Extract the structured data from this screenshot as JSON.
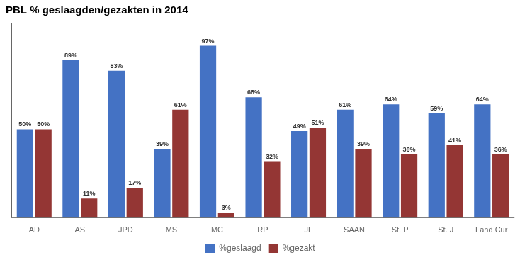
{
  "chart_data": {
    "type": "bar",
    "title": "PBL % geslaagden/gezakten in 2014",
    "categories": [
      "AD",
      "AS",
      "JPD",
      "MS",
      "MC",
      "RP",
      "JF",
      "SAAN",
      "St. P",
      "St. J",
      "Land Cur"
    ],
    "series": [
      {
        "name": "%geslaagd",
        "color": "#4472C4",
        "values": [
          50,
          89,
          83,
          39,
          97,
          68,
          49,
          61,
          64,
          59,
          64
        ],
        "value_labels": [
          "50%",
          "89%",
          "83%",
          "39%",
          "97%",
          "68%",
          "49%",
          "61%",
          "64%",
          "59%",
          "64%"
        ]
      },
      {
        "name": "%gezakt",
        "color": "#943634",
        "values": [
          50,
          11,
          17,
          61,
          3,
          32,
          51,
          39,
          36,
          41,
          36
        ],
        "value_labels": [
          "50%",
          "11%",
          "17%",
          "61%",
          "3%",
          "32%",
          "51%",
          "39%",
          "36%",
          "41%",
          "36%"
        ]
      }
    ],
    "ylim": [
      0,
      110
    ],
    "grid": false,
    "legend": "bottom",
    "data_labels": true,
    "tick_labels": "x"
  }
}
